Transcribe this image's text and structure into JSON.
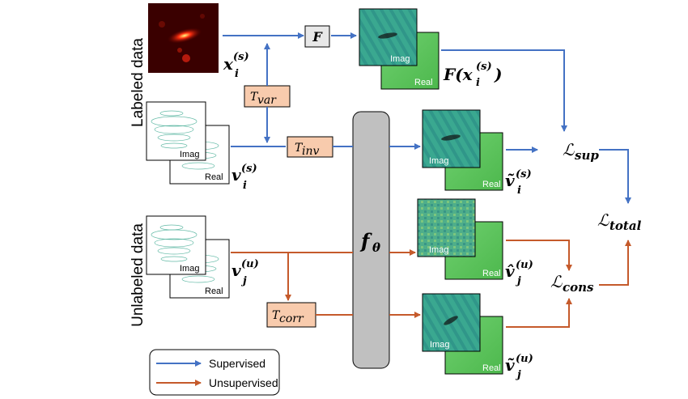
{
  "side_labels": {
    "labeled": "Labeled data",
    "unlabeled": "Unlabeled data"
  },
  "boxes": {
    "F": "F",
    "T_var": "T",
    "T_var_sub": "var",
    "T_inv": "T",
    "T_inv_sub": "inv",
    "T_corr": "T",
    "T_corr_sub": "corr",
    "f_theta": "f",
    "f_theta_sub": "θ"
  },
  "image_labels": {
    "imag": "Imag",
    "real": "Real"
  },
  "math": {
    "x_i_s": "x",
    "i_sub": "i",
    "s_sup": "(s)",
    "u_sup": "(u)",
    "j_sub": "j",
    "F_x": "F(x",
    "F_x_close": ")",
    "v": "v",
    "v_tilde": "ṽ",
    "v_hat": "v̂"
  },
  "losses": {
    "L": "ℒ",
    "sup": "sup",
    "cons": "cons",
    "total": "total"
  },
  "legend": {
    "supervised": "Supervised",
    "unsupervised": "Unsupervised"
  },
  "colors": {
    "blue": "#4472C4",
    "orange": "#C55A2B",
    "peach": "#F8CBAD",
    "gray": "#C0C0C0",
    "teal": "#2E8B7A",
    "green": "#5BC35B"
  }
}
